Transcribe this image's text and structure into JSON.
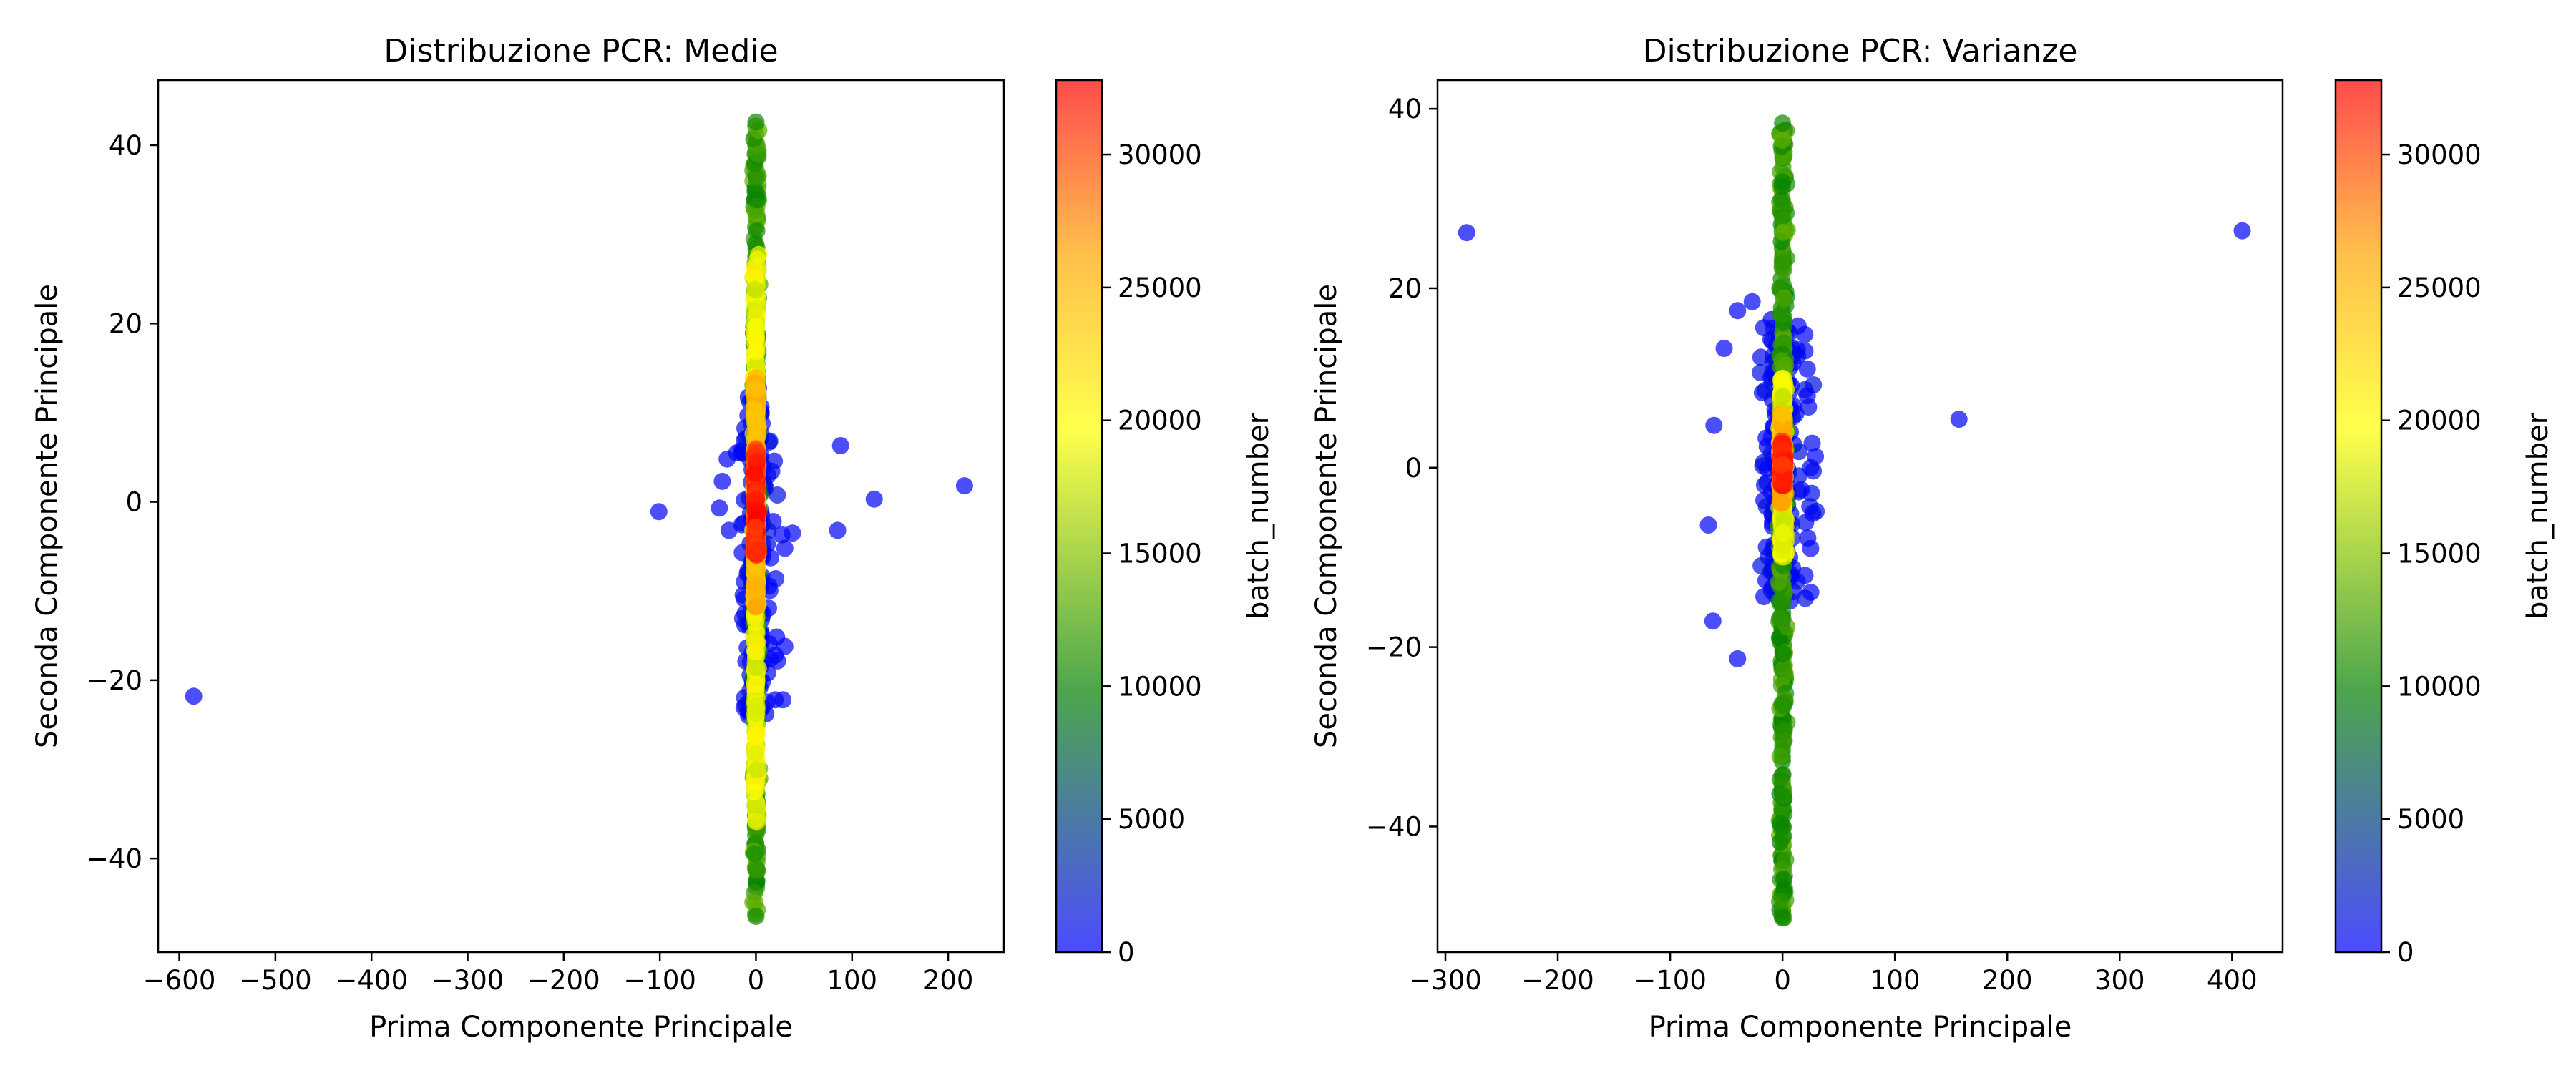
{
  "chart_data": [
    {
      "type": "scatter",
      "title": "Distribuzione PCR: Medie",
      "xlabel": "Prima Componente Principale",
      "ylabel": "Seconda Componente Principale",
      "xlim": [
        -622,
        258
      ],
      "ylim": [
        -50.5,
        47.3
      ],
      "xticks": [
        -600,
        -500,
        -400,
        -300,
        -200,
        -100,
        0,
        100,
        200
      ],
      "yticks": [
        -40,
        -20,
        0,
        20,
        40
      ],
      "xtick_labels": [
        "−600",
        "−500",
        "−400",
        "−300",
        "−200",
        "−100",
        "0",
        "100",
        "200"
      ],
      "ytick_labels": [
        "−40",
        "−20",
        "0",
        "20",
        "40"
      ],
      "outliers": [
        {
          "x": -585,
          "y": -21.8
        },
        {
          "x": -101,
          "y": -1.1
        },
        {
          "x": 88,
          "y": 6.3
        },
        {
          "x": 123,
          "y": 0.3
        },
        {
          "x": 217,
          "y": 1.8
        },
        {
          "x": 85,
          "y": -3.2
        },
        {
          "x": 38,
          "y": -3.5
        },
        {
          "x": 30,
          "y": -5.2
        },
        {
          "x": 27,
          "y": -3.7
        },
        {
          "x": 30,
          "y": -16.2
        },
        {
          "x": 20,
          "y": -22.2
        },
        {
          "x": 28,
          "y": -22.2
        },
        {
          "x": 20,
          "y": -17.2
        },
        {
          "x": -35,
          "y": 2.3
        },
        {
          "x": -38,
          "y": -0.7
        },
        {
          "x": -28,
          "y": -3.2
        },
        {
          "x": -30,
          "y": 4.8
        },
        {
          "x": -20,
          "y": 5.5
        }
      ],
      "column": {
        "x_center": 0,
        "y_min": -46.5,
        "y_max": 42.6,
        "note": "dense vertical band of points near x = 0"
      },
      "blue_cluster": {
        "x_range": [
          -15,
          15
        ],
        "y_range": [
          -24,
          13
        ]
      },
      "colorbar": {
        "label": "batch_number",
        "min": 0,
        "max": 32800,
        "ticks": [
          0,
          5000,
          10000,
          15000,
          20000,
          25000,
          30000
        ]
      }
    },
    {
      "type": "scatter",
      "title": "Distribuzione PCR: Varianze",
      "xlabel": "Prima Componente Principale",
      "ylabel": "Seconda Componente Principale",
      "xlim": [
        -307,
        445
      ],
      "ylim": [
        -54,
        43.2
      ],
      "xticks": [
        -300,
        -200,
        -100,
        0,
        100,
        200,
        300,
        400
      ],
      "yticks": [
        -40,
        -20,
        0,
        20,
        40
      ],
      "xtick_labels": [
        "−300",
        "−200",
        "−100",
        "0",
        "100",
        "200",
        "300",
        "400"
      ],
      "ytick_labels": [
        "−40",
        "−20",
        "0",
        "20",
        "40"
      ],
      "outliers": [
        {
          "x": -281,
          "y": 26.2
        },
        {
          "x": 409,
          "y": 26.4
        },
        {
          "x": 157,
          "y": 5.4
        },
        {
          "x": -40,
          "y": 17.5
        },
        {
          "x": -27,
          "y": 18.5
        },
        {
          "x": -52,
          "y": 13.3
        },
        {
          "x": -61,
          "y": 4.7
        },
        {
          "x": -66,
          "y": -6.4
        },
        {
          "x": -62,
          "y": -17.1
        },
        {
          "x": -40,
          "y": -21.3
        },
        {
          "x": 25,
          "y": 0.0
        },
        {
          "x": 27,
          "y": -5.1
        },
        {
          "x": 25,
          "y": -9.0
        },
        {
          "x": 20,
          "y": -12.0
        },
        {
          "x": 22,
          "y": 11.0
        },
        {
          "x": 20,
          "y": 13.0
        },
        {
          "x": 22,
          "y": 8.0
        },
        {
          "x": -10,
          "y": 16.5
        }
      ],
      "column": {
        "x_center": 0,
        "y_min": -50.2,
        "y_max": 38.4,
        "note": "dense vertical band of points near x = 0"
      },
      "blue_cluster": {
        "x_range": [
          -20,
          20
        ],
        "y_range": [
          -15,
          16
        ]
      },
      "colorbar": {
        "label": "batch_number",
        "min": 0,
        "max": 32800,
        "ticks": [
          0,
          5000,
          10000,
          15000,
          20000,
          25000,
          30000
        ]
      }
    }
  ],
  "colors": {
    "colormap": [
      "#0000ff",
      "#008000",
      "#ffff00",
      "#ffa500",
      "#ff0000"
    ],
    "marker_alpha": 0.7
  }
}
